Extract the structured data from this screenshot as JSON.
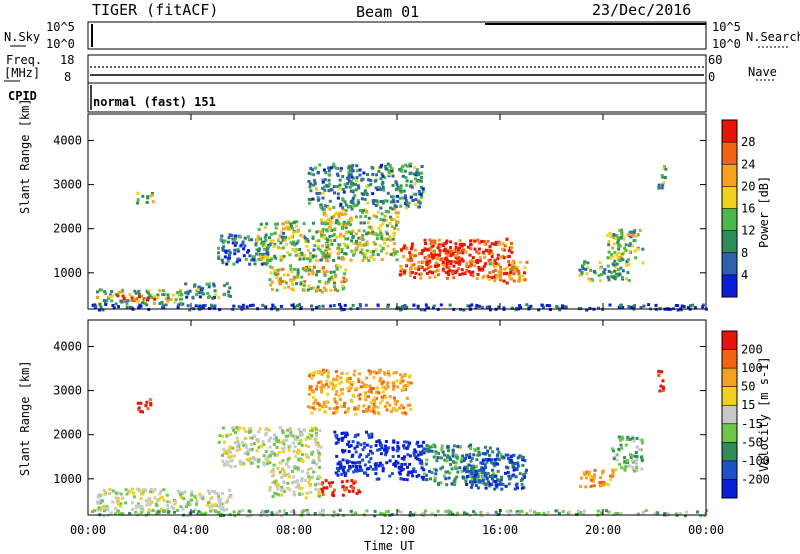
{
  "header": {
    "radar": "TIGER (fitACF)",
    "beam": "Beam 01",
    "date": "23/Dec/2016"
  },
  "status_panel": {
    "nsky_label": "N.Sky",
    "nsky_ticks": [
      "10^5",
      "10^0"
    ],
    "nsearch_label": "N.Search",
    "nsearch_ticks": [
      "10^5",
      "10^0"
    ],
    "freq_label": "Freq.",
    "freq_unit": "[MHz]",
    "freq_ticks": [
      "18",
      "8"
    ],
    "nave_label": "Nave",
    "nave_ticks": [
      "60",
      "0"
    ],
    "cpid_label": "CPID",
    "cpid_value": "normal (fast) 151"
  },
  "colors": {
    "power": [
      "#0a1ed8",
      "#2f5fb0",
      "#2e8c5a",
      "#4ab84a",
      "#f0d21e",
      "#f5a01e",
      "#f06414",
      "#e8140a"
    ],
    "velocity": [
      "#0a1ed8",
      "#1e50c8",
      "#2e8c5a",
      "#6cc84a",
      "#c8c8c8",
      "#f0d21e",
      "#f5a01e",
      "#f06414",
      "#e8140a"
    ]
  },
  "chart_data": [
    {
      "type": "heatmap",
      "name": "Power",
      "ylabel": "Slant Range [km]",
      "yticks": [
        "4000",
        "3000",
        "2000",
        "1000"
      ],
      "yvalues": [
        4000,
        3000,
        2000,
        1000
      ],
      "ylim": [
        180,
        4600
      ],
      "xlim": [
        0,
        24
      ],
      "colorbar_label": "Power [dB]",
      "colorbar_ticks": [
        "28",
        "24",
        "20",
        "16",
        "12",
        "8",
        "4"
      ],
      "colorbar_range": [
        0,
        32
      ],
      "regions": [
        {
          "t0": 0.3,
          "t1": 3.8,
          "r0": 300,
          "r1": 650,
          "level": 0.45
        },
        {
          "t0": 1.0,
          "t1": 2.6,
          "r0": 380,
          "r1": 520,
          "level": 0.95
        },
        {
          "t0": 3.5,
          "t1": 5.5,
          "r0": 450,
          "r1": 800,
          "level": 0.3
        },
        {
          "t0": 5.0,
          "t1": 7.0,
          "r0": 1200,
          "r1": 1900,
          "level": 0.25
        },
        {
          "t0": 6.5,
          "t1": 9.5,
          "r0": 1300,
          "r1": 2200,
          "level": 0.45
        },
        {
          "t0": 7.0,
          "t1": 10.0,
          "r0": 600,
          "r1": 1200,
          "level": 0.55
        },
        {
          "t0": 9.0,
          "t1": 12.0,
          "r0": 1300,
          "r1": 2500,
          "level": 0.5
        },
        {
          "t0": 12.0,
          "t1": 16.5,
          "r0": 900,
          "r1": 1800,
          "level": 0.85
        },
        {
          "t0": 13.0,
          "t1": 14.5,
          "r0": 1000,
          "r1": 1700,
          "level": 0.95
        },
        {
          "t0": 15.5,
          "t1": 17.0,
          "r0": 800,
          "r1": 1300,
          "level": 0.7
        },
        {
          "t0": 19.0,
          "t1": 21.0,
          "r0": 850,
          "r1": 1300,
          "level": 0.35
        },
        {
          "t0": 20.0,
          "t1": 21.5,
          "r0": 1200,
          "r1": 2000,
          "level": 0.45
        },
        {
          "t0": 1.8,
          "t1": 2.5,
          "r0": 2600,
          "r1": 2850,
          "level": 0.5
        },
        {
          "t0": 8.5,
          "t1": 13.0,
          "r0": 2500,
          "r1": 3500,
          "level": 0.3
        },
        {
          "t0": 22.1,
          "t1": 22.4,
          "r0": 2900,
          "r1": 3500,
          "level": 0.35
        },
        {
          "t0": 0.0,
          "t1": 24.0,
          "r0": 190,
          "r1": 320,
          "level": 0.15
        }
      ]
    },
    {
      "type": "heatmap",
      "name": "Velocity",
      "ylabel": "Slant Range [km]",
      "yticks": [
        "4000",
        "3000",
        "2000",
        "1000"
      ],
      "yvalues": [
        4000,
        3000,
        2000,
        1000
      ],
      "ylim": [
        180,
        4600
      ],
      "xlim": [
        0,
        24
      ],
      "xlabel": "Time UT",
      "xticks": [
        "00:00",
        "04:00",
        "08:00",
        "12:00",
        "16:00",
        "20:00",
        "00:00"
      ],
      "colorbar_label": "Velocity [m s-1]",
      "colorbar_ticks": [
        "200",
        "100",
        "50",
        "15",
        "-15",
        "-50",
        "-100",
        "-200"
      ],
      "regions": [
        {
          "t0": 0.3,
          "t1": 5.5,
          "r0": 300,
          "r1": 800,
          "level": 4
        },
        {
          "t0": 5.0,
          "t1": 9.0,
          "r0": 1300,
          "r1": 2200,
          "level": 4
        },
        {
          "t0": 7.0,
          "t1": 9.0,
          "r0": 600,
          "r1": 1300,
          "level": 4
        },
        {
          "t0": 9.0,
          "t1": 10.5,
          "r0": 650,
          "r1": 1000,
          "level": 8
        },
        {
          "t0": 9.5,
          "t1": 11.0,
          "r0": 1100,
          "r1": 2100,
          "level": 0
        },
        {
          "t0": 11.0,
          "t1": 13.0,
          "r0": 1000,
          "r1": 1900,
          "level": 0
        },
        {
          "t0": 13.0,
          "t1": 16.0,
          "r0": 900,
          "r1": 1800,
          "level": 2
        },
        {
          "t0": 14.5,
          "t1": 17.0,
          "r0": 800,
          "r1": 1600,
          "level": 1
        },
        {
          "t0": 19.0,
          "t1": 20.5,
          "r0": 850,
          "r1": 1250,
          "level": 6
        },
        {
          "t0": 20.3,
          "t1": 21.5,
          "r0": 1200,
          "r1": 2000,
          "level": 3
        },
        {
          "t0": 1.8,
          "t1": 2.4,
          "r0": 2550,
          "r1": 2850,
          "level": 8
        },
        {
          "t0": 8.5,
          "t1": 12.5,
          "r0": 2500,
          "r1": 3500,
          "level": 6
        },
        {
          "t0": 22.1,
          "t1": 22.4,
          "r0": 3000,
          "r1": 3500,
          "level": 8
        },
        {
          "t0": 0.0,
          "t1": 24.0,
          "r0": 190,
          "r1": 320,
          "level": 3
        }
      ]
    }
  ]
}
